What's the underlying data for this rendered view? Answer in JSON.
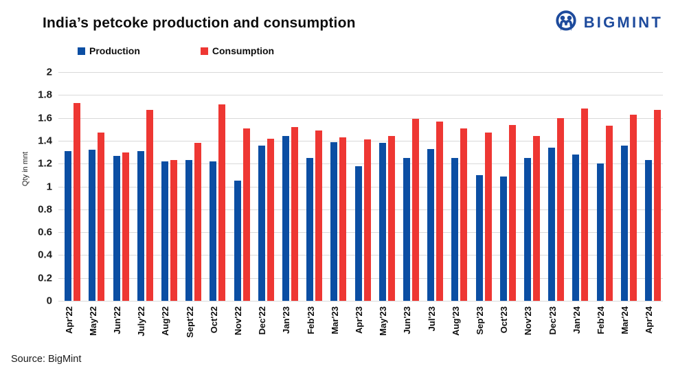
{
  "header": {
    "title": "India’s petcoke production and consumption",
    "logo_text": "BIGMINT",
    "logo_color": "#1d4a9c"
  },
  "legend": [
    {
      "label": "Production",
      "color": "#0b4ea3"
    },
    {
      "label": "Consumption",
      "color": "#ee3733"
    }
  ],
  "chart_data": {
    "type": "bar",
    "title": "India’s petcoke production and consumption",
    "xlabel": "",
    "ylabel": "Qty in mnt",
    "ylim": [
      0,
      2
    ],
    "ytick_step": 0.2,
    "yticks": [
      "2",
      "1.8",
      "1.6",
      "1.4",
      "1.2",
      "1",
      "0.8",
      "0.6",
      "0.4",
      "0.2",
      "0"
    ],
    "grid": true,
    "legend_position": "top-left",
    "categories": [
      "Apr'22",
      "May'22",
      "Jun'22",
      "July'22",
      "Aug'22",
      "Sept'22",
      "Oct'22",
      "Nov'22",
      "Dec'22",
      "Jan'23",
      "Feb'23",
      "Mar'23",
      "Apr'23",
      "May'23",
      "Jun'23",
      "Jul'23",
      "Aug'23",
      "Sep'23",
      "Oct'23",
      "Nov'23",
      "Dec'23",
      "Jan'24",
      "Feb'24",
      "Mar'24",
      "Apr'24"
    ],
    "series": [
      {
        "name": "Production",
        "color": "#0b4ea3",
        "values": [
          1.31,
          1.32,
          1.27,
          1.31,
          1.22,
          1.23,
          1.22,
          1.05,
          1.36,
          1.44,
          1.25,
          1.39,
          1.18,
          1.38,
          1.25,
          1.33,
          1.25,
          1.1,
          1.09,
          1.25,
          1.34,
          1.28,
          1.2,
          1.36,
          1.23
        ]
      },
      {
        "name": "Consumption",
        "color": "#ee3733",
        "values": [
          1.73,
          1.47,
          1.3,
          1.67,
          1.23,
          1.38,
          1.72,
          1.51,
          1.42,
          1.52,
          1.49,
          1.43,
          1.41,
          1.44,
          1.59,
          1.57,
          1.51,
          1.47,
          1.54,
          1.44,
          1.6,
          1.68,
          1.53,
          1.63,
          1.67
        ]
      }
    ]
  },
  "footer": {
    "source": "Source: BigMint"
  }
}
